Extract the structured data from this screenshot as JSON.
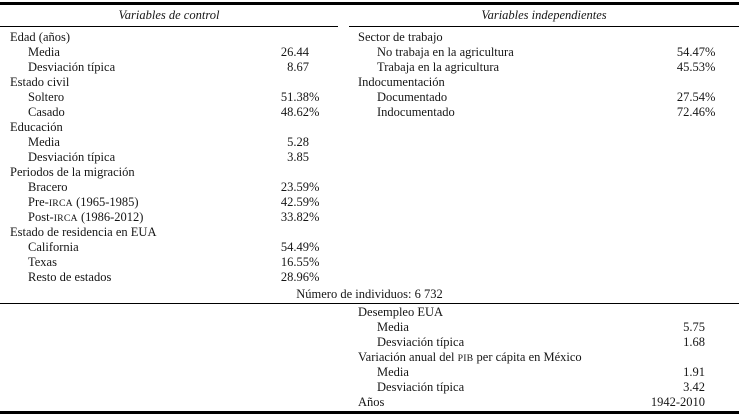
{
  "table": {
    "left": {
      "header": "Variables de control",
      "rows": [
        {
          "label": "Edad (años)",
          "indent": 0,
          "value": "",
          "suffix": ""
        },
        {
          "label": "Media",
          "indent": 1,
          "value": "26.44",
          "suffix": ""
        },
        {
          "label": "Desviación típica",
          "indent": 1,
          "value": "8.67",
          "suffix": ""
        },
        {
          "label": "Estado civil",
          "indent": 0,
          "value": "",
          "suffix": ""
        },
        {
          "label": "Soltero",
          "indent": 1,
          "value": "51.38",
          "suffix": "%"
        },
        {
          "label": "Casado",
          "indent": 1,
          "value": "48.62",
          "suffix": "%"
        },
        {
          "label": "Educación",
          "indent": 0,
          "value": "",
          "suffix": ""
        },
        {
          "label": "Media",
          "indent": 1,
          "value": "5.28",
          "suffix": ""
        },
        {
          "label": "Desviación típica",
          "indent": 1,
          "value": "3.85",
          "suffix": ""
        },
        {
          "label": "Periodos de la migración",
          "indent": 0,
          "value": "",
          "suffix": ""
        },
        {
          "label": "Bracero",
          "indent": 1,
          "value": "23.59",
          "suffix": "%"
        },
        {
          "label": "Pre-IRCA (1965-1985)",
          "indent": 1,
          "value": "42.59",
          "suffix": "%"
        },
        {
          "label": "Post-IRCA (1986-2012)",
          "indent": 1,
          "value": "33.82",
          "suffix": "%"
        },
        {
          "label": "Estado de residencia en EUA",
          "indent": 0,
          "value": "",
          "suffix": ""
        },
        {
          "label": "California",
          "indent": 1,
          "value": "54.49",
          "suffix": "%"
        },
        {
          "label": "Texas",
          "indent": 1,
          "value": "16.55",
          "suffix": "%"
        },
        {
          "label": "Resto de estados",
          "indent": 1,
          "value": "28.96",
          "suffix": "%"
        }
      ]
    },
    "right": {
      "header": "Variables independientes",
      "rows": [
        {
          "label": "Sector de trabajo",
          "indent": 0,
          "value": "",
          "suffix": ""
        },
        {
          "label": "No trabaja en la agricultura",
          "indent": 1,
          "value": "54.47",
          "suffix": "%"
        },
        {
          "label": "Trabaja en la agricultura",
          "indent": 1,
          "value": "45.53",
          "suffix": "%"
        },
        {
          "label": "Indocumentación",
          "indent": 0,
          "value": "",
          "suffix": ""
        },
        {
          "label": "Documentado",
          "indent": 1,
          "value": "27.54",
          "suffix": "%"
        },
        {
          "label": "Indocumentado",
          "indent": 1,
          "value": "72.46",
          "suffix": "%"
        }
      ]
    },
    "sample_note": "Número de individuos: 6 732",
    "bottom": {
      "rows": [
        {
          "label": "Desempleo EUA",
          "indent": 0,
          "value": "",
          "suffix": ""
        },
        {
          "label": "Media",
          "indent": 1,
          "value": "5.75",
          "suffix": ""
        },
        {
          "label": "Desviación típica",
          "indent": 1,
          "value": "1.68",
          "suffix": ""
        },
        {
          "label": "Variación anual del PIB per cápita en México",
          "indent": 0,
          "value": "",
          "suffix": ""
        },
        {
          "label": "Media",
          "indent": 1,
          "value": "1.91",
          "suffix": ""
        },
        {
          "label": "Desviación típica",
          "indent": 1,
          "value": "3.42",
          "suffix": ""
        },
        {
          "label": "Años",
          "indent": 0,
          "value": "1942-2010",
          "suffix": ""
        }
      ]
    }
  }
}
